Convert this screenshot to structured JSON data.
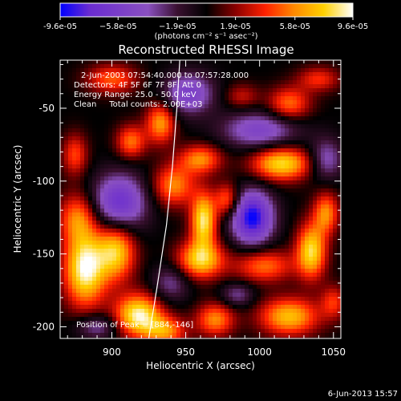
{
  "chart_data": {
    "type": "heatmap",
    "title": "Reconstructed RHESSI Image",
    "xlabel": "Heliocentric X (arcsec)",
    "ylabel": "Heliocentric Y (arcsec)",
    "xlim": [
      865,
      1055
    ],
    "ylim": [
      -208,
      -17
    ],
    "x_ticks": [
      900,
      950,
      1000,
      1050
    ],
    "y_ticks": [
      -50,
      -100,
      -150,
      -200
    ],
    "x_tick_labels": [
      "900",
      "950",
      "1000",
      "1050"
    ],
    "y_tick_labels": [
      "-50",
      "-100",
      "-150",
      "-200"
    ],
    "colorbar": {
      "min": -9.6e-05,
      "max": 9.6e-05,
      "tick_values": [
        -9.6e-05,
        -5.8e-05,
        -1.9e-05,
        1.9e-05,
        5.8e-05,
        9.6e-05
      ],
      "tick_labels": [
        "-9.6e-05",
        "−5.8e-05",
        "−1.9e-05",
        "1.9e-05",
        "5.8e-05",
        "9.6e-05"
      ],
      "label": "(photons cm⁻² s⁻¹ asec⁻²)",
      "colors": [
        "#0000ff",
        "#6a2cd0",
        "#7a3ec8",
        "#8a50c0",
        "#3a1030",
        "#000000",
        "#8a0000",
        "#ff2000",
        "#ff8a00",
        "#ffd000",
        "#ffffff"
      ]
    },
    "annotations": [
      "2-Jun-2003 07:54:40.000 to 07:57:28.000",
      "Detectors: 4F 5F 6F 7F 8F, Att 0",
      "Energy Range: 25.0 - 50.0 keV",
      "Clean     Total counts: 2.00E+03"
    ],
    "peak_label": "Position of Peak = [884,-146]",
    "peak_position": [
      884,
      -146
    ],
    "limb_curve": [
      [
        925,
        -208
      ],
      [
        931,
        -170
      ],
      [
        937,
        -130
      ],
      [
        941,
        -90
      ],
      [
        944,
        -50
      ],
      [
        946,
        -17
      ]
    ],
    "sources": [
      {
        "x": 882,
        "y": -160,
        "amp": 1.0,
        "sx": 10,
        "sy": 18
      },
      {
        "x": 877,
        "y": -125,
        "amp": 0.55,
        "sx": 9,
        "sy": 12
      },
      {
        "x": 903,
        "y": -148,
        "amp": 0.8,
        "sx": 9,
        "sy": 14
      },
      {
        "x": 918,
        "y": -192,
        "amp": 0.95,
        "sx": 11,
        "sy": 10
      },
      {
        "x": 936,
        "y": -203,
        "amp": 0.6,
        "sx": 10,
        "sy": 7
      },
      {
        "x": 900,
        "y": -30,
        "amp": 0.5,
        "sx": 12,
        "sy": 7
      },
      {
        "x": 933,
        "y": -60,
        "amp": 0.65,
        "sx": 7,
        "sy": 10
      },
      {
        "x": 913,
        "y": -73,
        "amp": 0.55,
        "sx": 7,
        "sy": 8
      },
      {
        "x": 960,
        "y": -85,
        "amp": 0.6,
        "sx": 10,
        "sy": 7
      },
      {
        "x": 942,
        "y": -103,
        "amp": 0.6,
        "sx": 10,
        "sy": 10
      },
      {
        "x": 962,
        "y": -127,
        "amp": 0.9,
        "sx": 6,
        "sy": 13
      },
      {
        "x": 978,
        "y": -113,
        "amp": 0.55,
        "sx": 6,
        "sy": 8
      },
      {
        "x": 1015,
        "y": -88,
        "amp": 0.85,
        "sx": 14,
        "sy": 8
      },
      {
        "x": 1020,
        "y": -47,
        "amp": 0.55,
        "sx": 10,
        "sy": 8
      },
      {
        "x": 988,
        "y": -42,
        "amp": 0.3,
        "sx": 8,
        "sy": 6
      },
      {
        "x": 960,
        "y": -154,
        "amp": 0.8,
        "sx": 11,
        "sy": 9
      },
      {
        "x": 1003,
        "y": -158,
        "amp": 0.55,
        "sx": 14,
        "sy": 8
      },
      {
        "x": 1035,
        "y": -148,
        "amp": 0.85,
        "sx": 7,
        "sy": 13
      },
      {
        "x": 1045,
        "y": -122,
        "amp": 0.6,
        "sx": 6,
        "sy": 10
      },
      {
        "x": 970,
        "y": -195,
        "amp": 0.6,
        "sx": 9,
        "sy": 8
      },
      {
        "x": 1020,
        "y": -193,
        "amp": 0.75,
        "sx": 14,
        "sy": 9
      },
      {
        "x": 1050,
        "y": -183,
        "amp": 0.4,
        "sx": 6,
        "sy": 8
      },
      {
        "x": 875,
        "y": -82,
        "amp": 0.45,
        "sx": 6,
        "sy": 10
      },
      {
        "x": 1040,
        "y": -30,
        "amp": 0.4,
        "sx": 10,
        "sy": 6
      },
      {
        "x": 905,
        "y": -115,
        "amp": -0.75,
        "sx": 13,
        "sy": 14
      },
      {
        "x": 952,
        "y": -40,
        "amp": -0.6,
        "sx": 12,
        "sy": 10
      },
      {
        "x": 995,
        "y": -125,
        "amp": -1.0,
        "sx": 10,
        "sy": 13
      },
      {
        "x": 1000,
        "y": -65,
        "amp": -0.55,
        "sx": 18,
        "sy": 9
      },
      {
        "x": 940,
        "y": -170,
        "amp": -0.35,
        "sx": 9,
        "sy": 9
      },
      {
        "x": 1045,
        "y": -85,
        "amp": -0.45,
        "sx": 8,
        "sy": 10
      },
      {
        "x": 890,
        "y": -200,
        "amp": -0.4,
        "sx": 10,
        "sy": 6
      },
      {
        "x": 985,
        "y": -178,
        "amp": -0.35,
        "sx": 8,
        "sy": 6
      }
    ]
  },
  "footer": {
    "timestamp": "6-Jun-2013 15:57"
  }
}
